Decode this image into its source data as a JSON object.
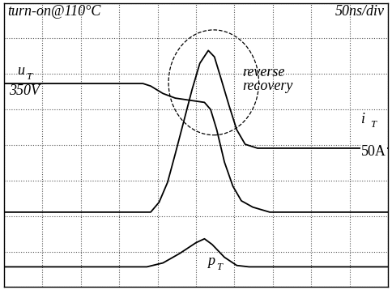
{
  "chart_data": {
    "type": "line",
    "title": "turn-on@110°C",
    "subtitle": "50ns/div",
    "annotations": [
      "350V",
      "reverse recovery",
      "50A"
    ],
    "xlim": [
      0,
      500
    ],
    "ylim": [
      0,
      8
    ],
    "xticks": [
      0,
      50,
      100,
      150,
      200,
      250,
      300,
      350,
      400,
      450,
      500
    ],
    "yticks": [
      0,
      1,
      2,
      3,
      4,
      5,
      6,
      7,
      8
    ],
    "grid": true,
    "tick_labels": false,
    "series": [
      {
        "name": "uT",
        "color": "#000000",
        "x": [
          0,
          181,
          191,
          207,
          223,
          245,
          261,
          269,
          277,
          287,
          298,
          309,
          324,
          346,
          500
        ],
        "values": [
          5.73,
          5.73,
          5.66,
          5.45,
          5.32,
          5.25,
          5.2,
          5.0,
          4.43,
          3.52,
          2.84,
          2.43,
          2.25,
          2.11,
          2.11
        ]
      },
      {
        "name": "iT",
        "color": "#000000",
        "x": [
          0,
          191,
          202,
          213,
          223,
          234,
          245,
          255,
          266,
          274,
          282,
          293,
          303,
          314,
          330,
          500
        ],
        "values": [
          2.11,
          2.11,
          2.39,
          2.95,
          3.75,
          4.66,
          5.57,
          6.3,
          6.66,
          6.48,
          5.91,
          5.11,
          4.43,
          4.02,
          3.91,
          3.91
        ]
      },
      {
        "name": "pT",
        "color": "#000000",
        "x": [
          0,
          186,
          207,
          229,
          250,
          261,
          271,
          287,
          303,
          319,
          500
        ],
        "values": [
          0.57,
          0.57,
          0.68,
          0.95,
          1.25,
          1.36,
          1.2,
          0.84,
          0.61,
          0.57,
          0.57
        ]
      }
    ]
  }
}
